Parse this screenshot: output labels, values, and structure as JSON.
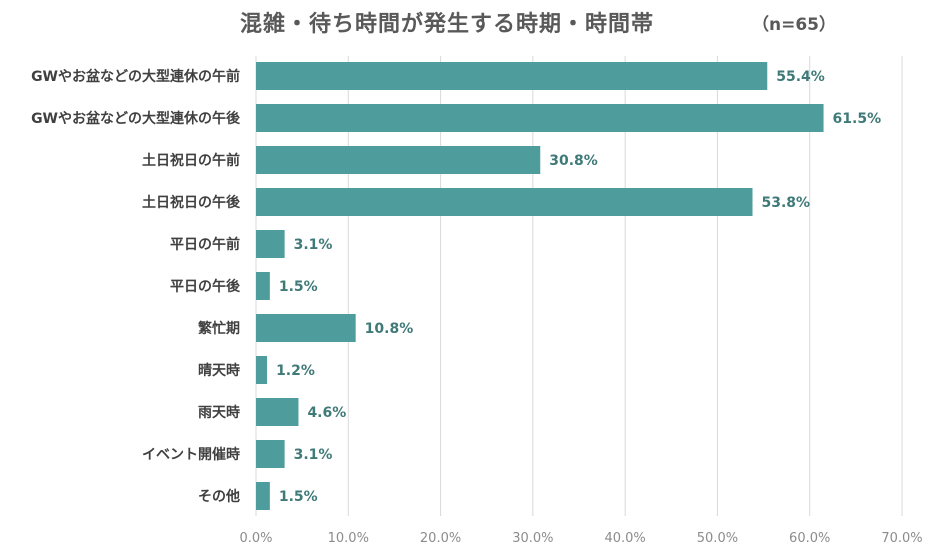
{
  "title": "混雑・待ち時間が発生する時期・時間帯",
  "sample_size": "（n=65）",
  "colors": {
    "bar": "#4e9c9c",
    "value_text": "#3f7a78",
    "grid": "#d9d9d9"
  },
  "chart_data": {
    "type": "bar",
    "orientation": "horizontal",
    "title": "混雑・待ち時間が発生する時期・時間帯",
    "categories": [
      "GWやお盆などの大型連休の午前",
      "GWやお盆などの大型連休の午後",
      "土日祝日の午前",
      "土日祝日の午後",
      "平日の午前",
      "平日の午後",
      "繁忙期",
      "晴天時",
      "雨天時",
      "イベント開催時",
      "その他"
    ],
    "values": [
      55.4,
      61.5,
      30.8,
      53.8,
      3.1,
      1.5,
      10.8,
      1.2,
      4.6,
      3.1,
      1.5
    ],
    "value_labels": [
      "55.4%",
      "61.5%",
      "30.8%",
      "53.8%",
      "3.1%",
      "1.5%",
      "10.8%",
      "1.2%",
      "4.6%",
      "3.1%",
      "1.5%"
    ],
    "xlim": [
      0,
      70
    ],
    "x_ticks": [
      "0.0%",
      "10.0%",
      "20.0%",
      "30.0%",
      "40.0%",
      "50.0%",
      "60.0%",
      "70.0%"
    ],
    "grid": true,
    "legend": "none"
  }
}
